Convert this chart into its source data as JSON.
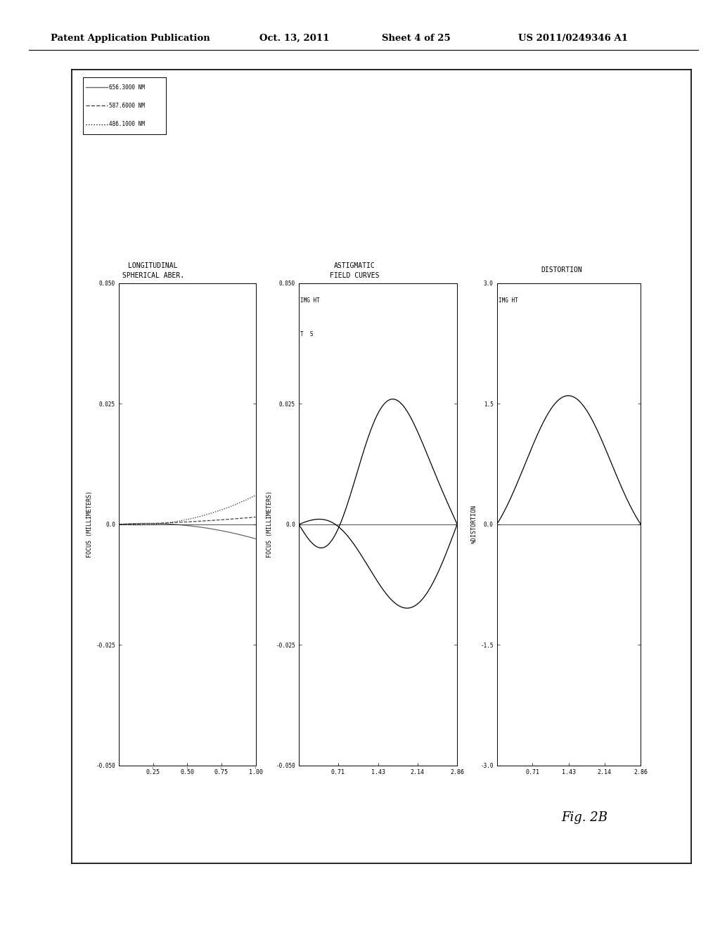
{
  "title_header": "Patent Application Publication",
  "title_date": "Oct. 13, 2011",
  "title_sheet": "Sheet 4 of 25",
  "title_patent": "US 2011/0249346 A1",
  "fig_label": "Fig. 2B",
  "wavelengths": [
    "656.3000 NM",
    "587.6000 NM",
    "486.1000 NM"
  ],
  "wave_colors": [
    "#666666",
    "#444444",
    "#222222"
  ],
  "wave_linestyles": [
    "solid",
    "dashed",
    "dotted"
  ],
  "lsa_title1": "LONGITUDINAL",
  "lsa_title2": "SPHERICAL ABER.",
  "lsa_ylabel": "FOCUS (MILLIMETERS)",
  "lsa_xticks": [
    0.25,
    0.5,
    0.75,
    1.0
  ],
  "lsa_ylim": [
    -0.05,
    0.05
  ],
  "lsa_xlim": [
    0.0,
    1.0
  ],
  "lsa_yticks": [
    -0.05,
    -0.025,
    0.0,
    0.025,
    0.05
  ],
  "afc_title1": "ASTIGMATIC",
  "afc_title2": "FIELD CURVES",
  "afc_ylabel": "FOCUS (MILLIMETERS)",
  "afc_ht_ticks": [
    0.71,
    1.43,
    2.14,
    2.86
  ],
  "afc_ylim": [
    -0.05,
    0.05
  ],
  "afc_xlim": [
    0.0,
    2.86
  ],
  "afc_yticks": [
    -0.05,
    -0.025,
    0.0,
    0.025,
    0.05
  ],
  "dist_title": "DISTORTION",
  "dist_ylabel": "%DISTORTION",
  "dist_ht_ticks": [
    0.71,
    1.43,
    2.14,
    2.86
  ],
  "dist_ylim": [
    -3.0,
    3.0
  ],
  "dist_xlim": [
    0.0,
    2.86
  ],
  "dist_yticks": [
    -3.0,
    -1.5,
    0.0,
    1.5,
    3.0
  ],
  "background": "#ffffff",
  "box_color": "#000000",
  "text_color": "#000000"
}
